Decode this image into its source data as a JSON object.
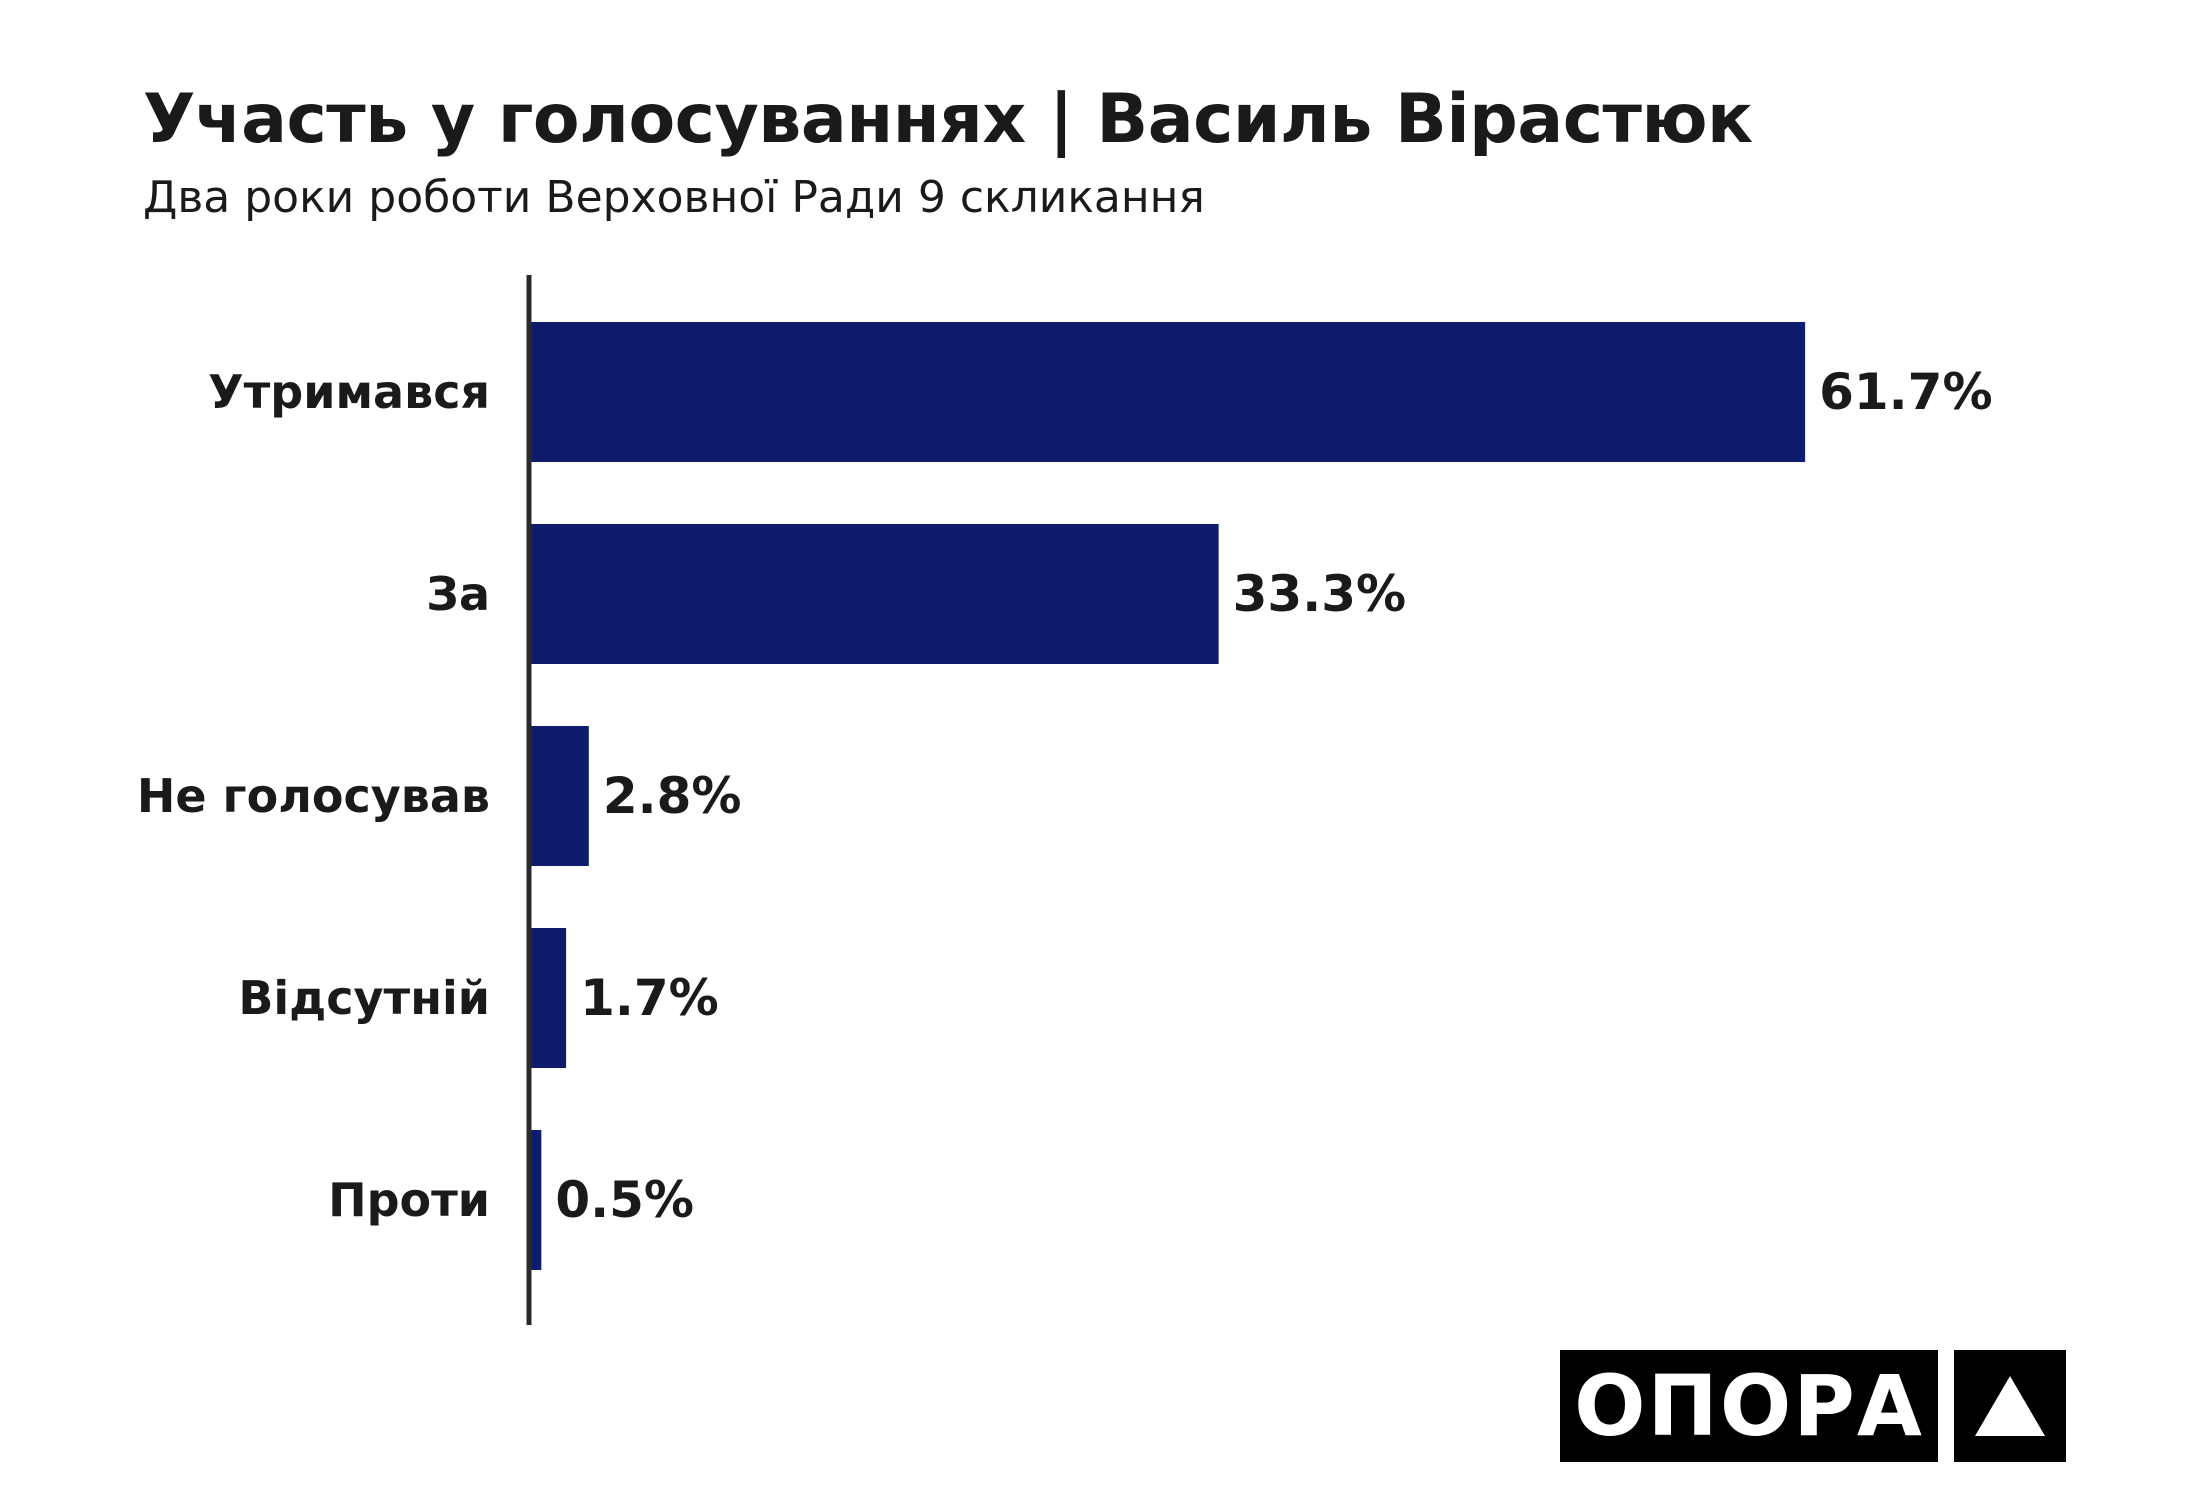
{
  "chart_data": {
    "type": "bar",
    "orientation": "horizontal",
    "title": "Участь у голосуваннях | Василь Вірастюк",
    "subtitle": "Два роки роботи Верховної Ради 9 скликання",
    "categories": [
      "Утримався",
      "За",
      "Не голосував",
      "Відсутній",
      "Проти"
    ],
    "values": [
      61.7,
      33.3,
      2.8,
      1.7,
      0.5
    ],
    "value_labels": [
      "61.7%",
      "33.3%",
      "2.8%",
      "1.7%",
      "0.5%"
    ],
    "xlim": [
      0,
      100
    ],
    "grid": false,
    "bar_color": "#0f1c6e"
  },
  "logo": {
    "text": "ОПОРА",
    "icon": "triangle-up-icon"
  }
}
